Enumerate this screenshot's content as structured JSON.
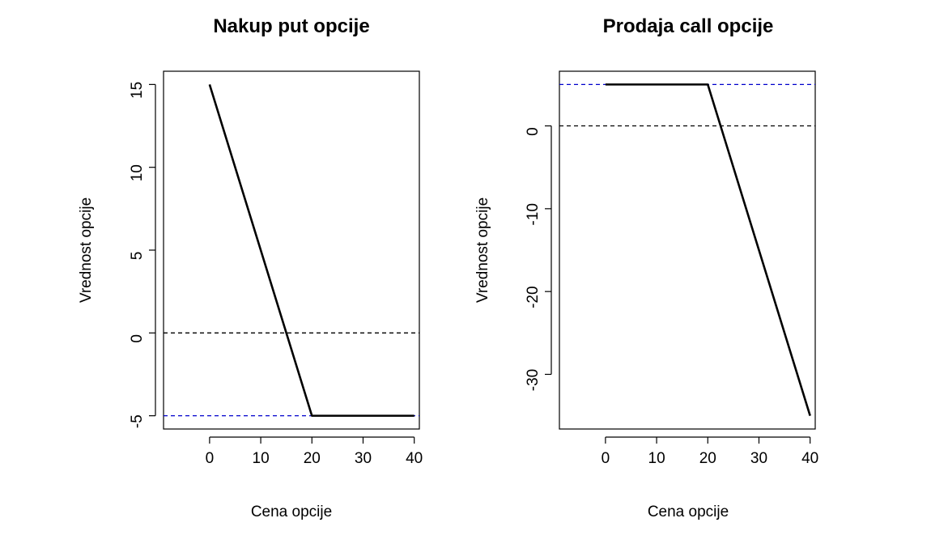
{
  "colors": {
    "payoff_line": "#000000",
    "zero_line": "#000000",
    "premium_line": "#0000cc",
    "frame": "#000000"
  },
  "chart_data": [
    {
      "type": "line",
      "title": "Nakup put opcije",
      "xlabel": "Cena opcije",
      "ylabel": "Vrednost opcije",
      "xlim": [
        -9,
        41
      ],
      "ylim": [
        -5.8,
        15.8
      ],
      "x_ticks": [
        0,
        10,
        20,
        30,
        40
      ],
      "y_ticks": [
        -5,
        0,
        5,
        10,
        15
      ],
      "grid": false,
      "series": [
        {
          "x": [
            0,
            20,
            40
          ],
          "y": [
            15,
            -5,
            -5
          ]
        }
      ],
      "hlines": [
        {
          "y": 0,
          "style": "dashed",
          "color": "#000000"
        },
        {
          "y": -5,
          "style": "dashed",
          "color": "#0000cc"
        }
      ]
    },
    {
      "type": "line",
      "title": "Prodaja call opcije",
      "xlabel": "Cena opcije",
      "ylabel": "Vrednost opcije",
      "xlim": [
        -9,
        41
      ],
      "ylim": [
        -36.6,
        6.6
      ],
      "x_ticks": [
        0,
        10,
        20,
        30,
        40
      ],
      "y_ticks": [
        -30,
        -20,
        -10,
        0
      ],
      "grid": false,
      "series": [
        {
          "x": [
            0,
            20,
            40
          ],
          "y": [
            5,
            5,
            -35
          ]
        }
      ],
      "hlines": [
        {
          "y": 0,
          "style": "dashed",
          "color": "#000000"
        },
        {
          "y": 5,
          "style": "dashed",
          "color": "#0000cc"
        }
      ]
    }
  ]
}
